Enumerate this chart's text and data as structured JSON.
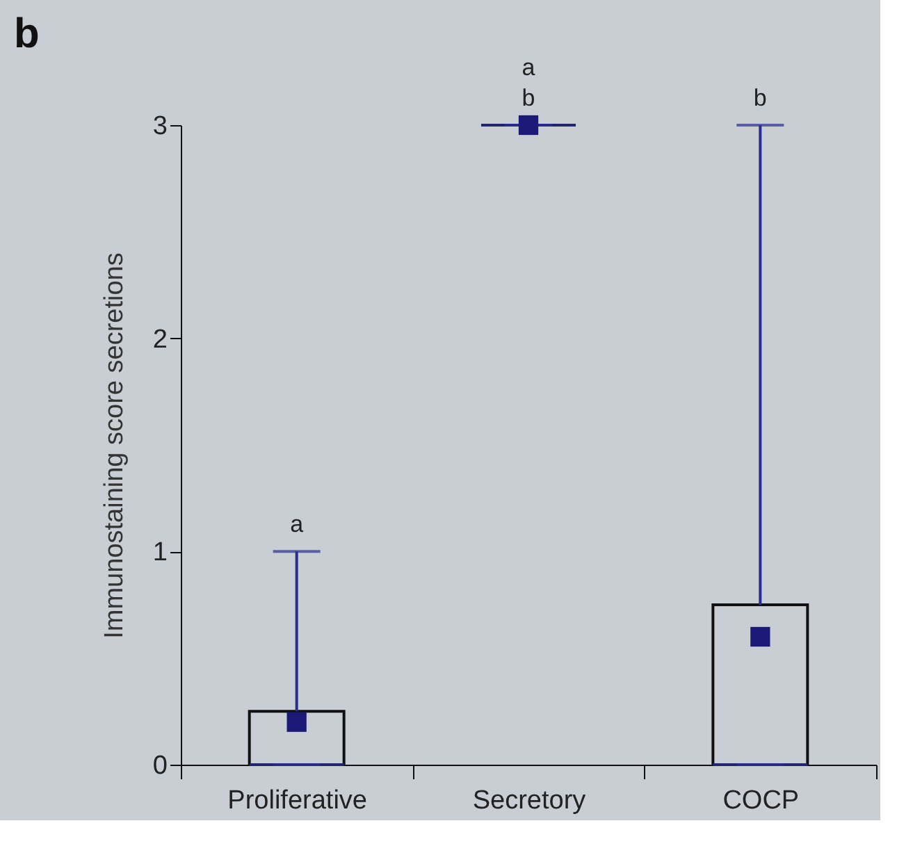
{
  "chart_data": {
    "type": "box",
    "title": "b",
    "ylabel": "Immunostaining score secretions",
    "categories": [
      "Proliferative",
      "Secretory",
      "COCP"
    ],
    "boxes": [
      {
        "low": 0,
        "q1": 0,
        "median": 0,
        "q3": 0.25,
        "high": 1,
        "mean": 0.2
      },
      {
        "low": 3,
        "q1": 3,
        "median": 3,
        "q3": 3,
        "high": 3,
        "mean": 3
      },
      {
        "low": 0,
        "q1": 0,
        "median": 0,
        "q3": 0.75,
        "high": 3,
        "mean": 0.6
      }
    ],
    "ylim": [
      0,
      3
    ],
    "yticks": [
      0,
      1,
      2,
      3
    ],
    "annotations": [
      {
        "text": "a",
        "x": "Proliferative",
        "y": 1
      },
      {
        "text": "b",
        "x": "Secretory",
        "y": 3
      },
      {
        "text": "a",
        "x": "Secretory",
        "y": 3
      },
      {
        "text": "b",
        "x": "COCP",
        "y": 3
      }
    ]
  }
}
